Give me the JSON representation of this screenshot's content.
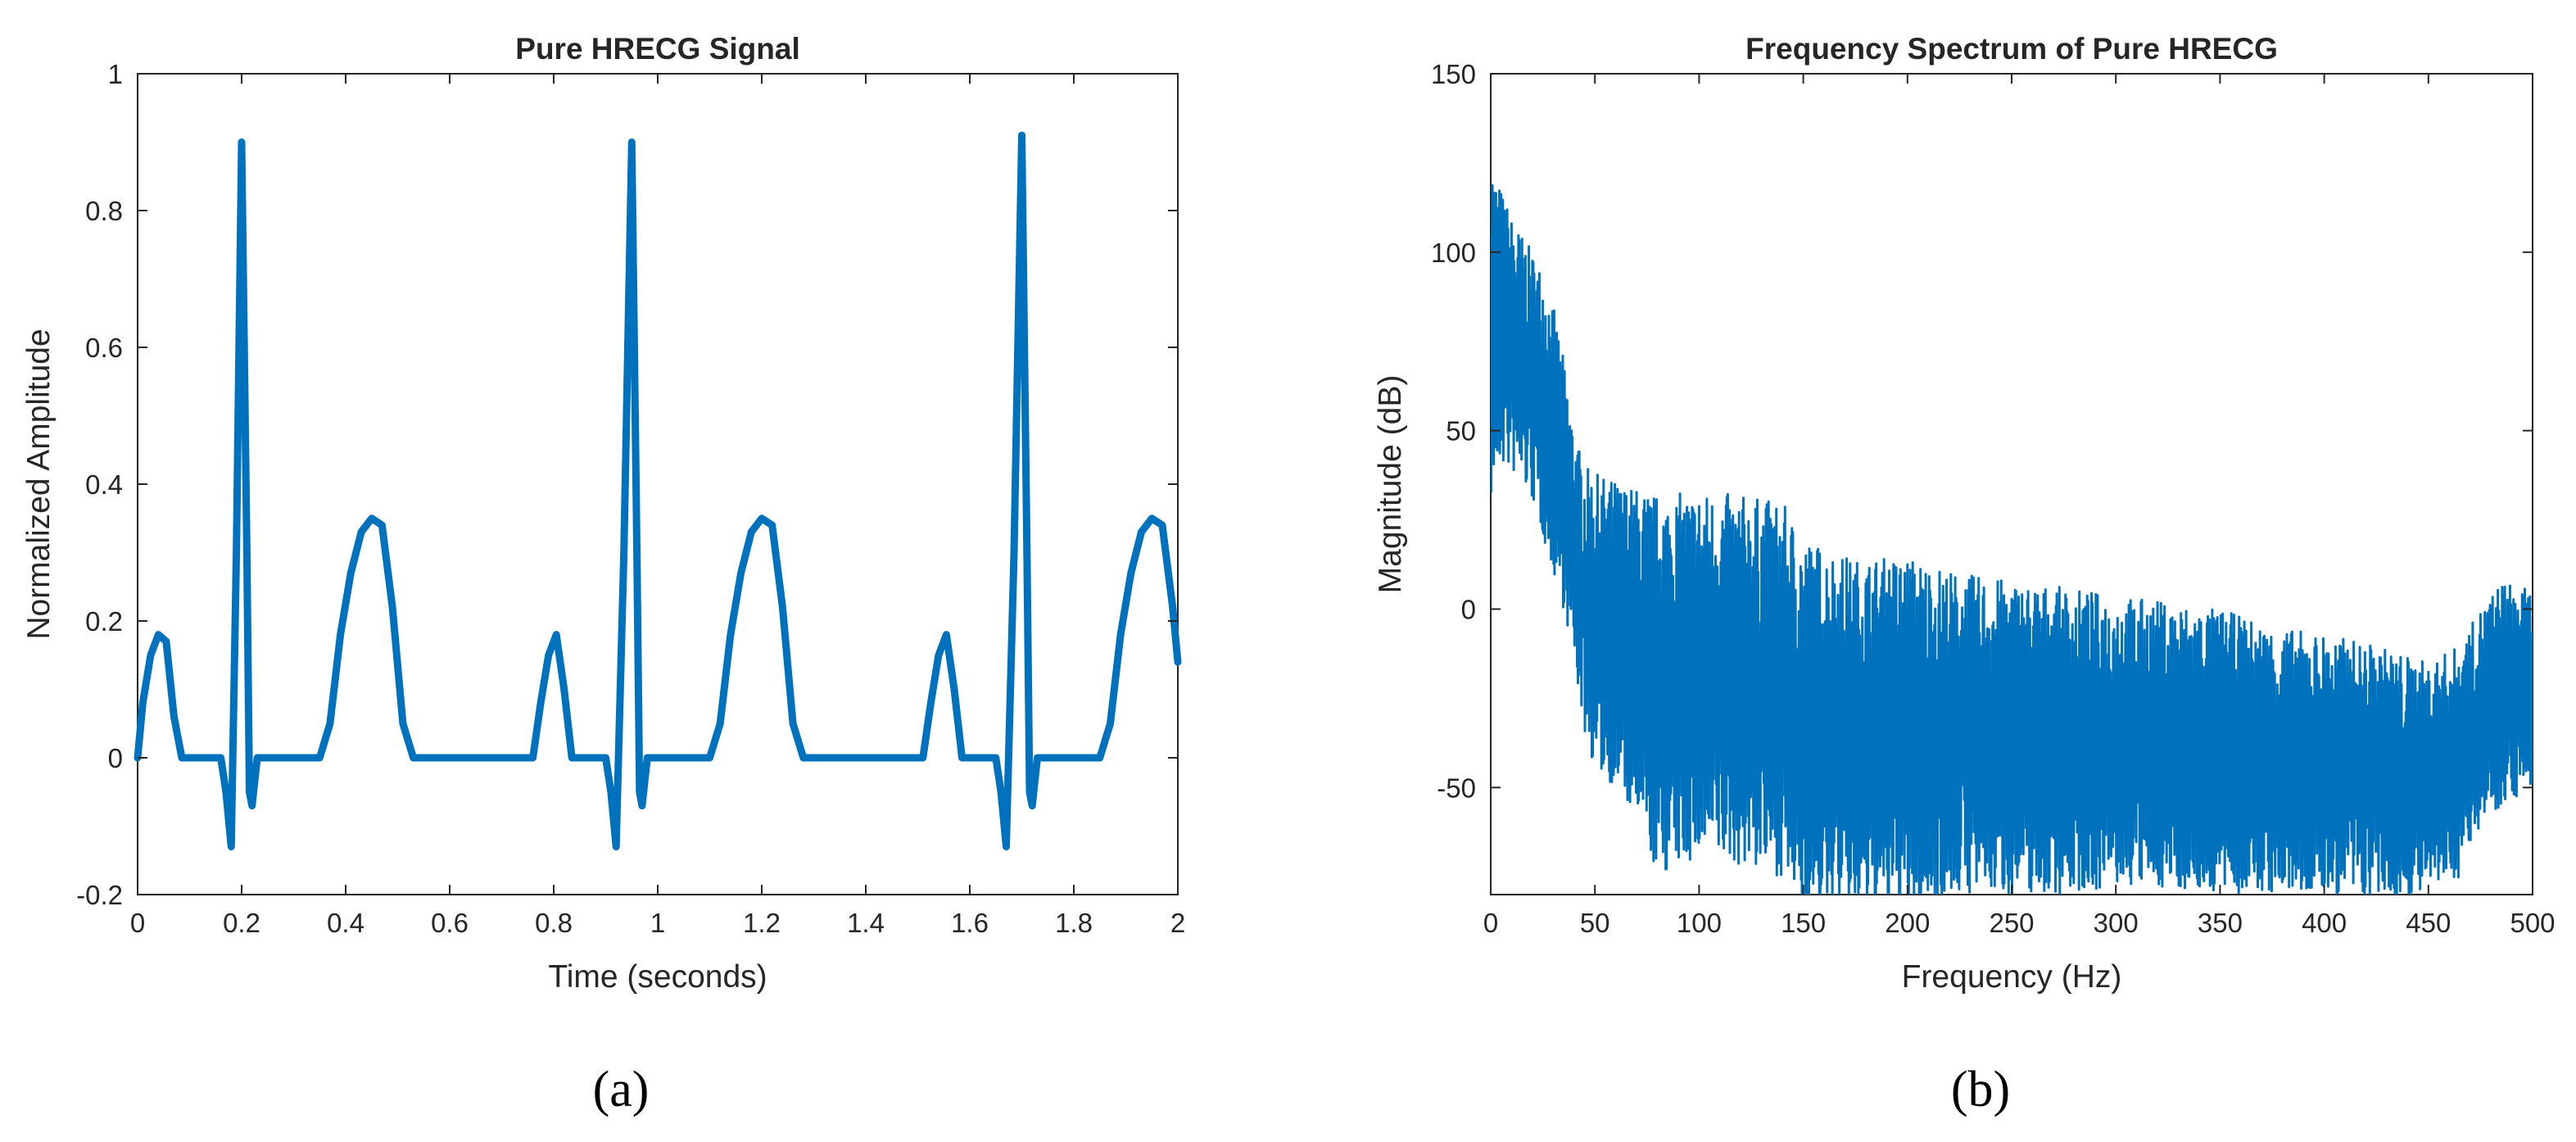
{
  "colors": {
    "line": "#0072BD",
    "axis": "#262626",
    "background": "#ffffff"
  },
  "chart_data": [
    {
      "type": "line",
      "title": "Pure HRECG Signal",
      "xlabel": "Time (seconds)",
      "ylabel": "Normalized Amplitude",
      "xlim": [
        0,
        2
      ],
      "ylim": [
        -0.2,
        1
      ],
      "xticks": [
        "0",
        "0.2",
        "0.4",
        "0.6",
        "0.8",
        "1",
        "1.2",
        "1.4",
        "1.6",
        "1.8",
        "2"
      ],
      "yticks": [
        "-0.2",
        "0",
        "0.2",
        "0.4",
        "0.6",
        "0.8",
        "1"
      ],
      "grid": false,
      "caption": "(a)",
      "series": [
        {
          "x": [
            0,
            0.01,
            0.025,
            0.04,
            0.055,
            0.07,
            0.085,
            0.1,
            0.13,
            0.16,
            0.17,
            0.18,
            0.19,
            0.2,
            0.21,
            0.215,
            0.22,
            0.23,
            0.25,
            0.3,
            0.35,
            0.37,
            0.39,
            0.41,
            0.43,
            0.45,
            0.47,
            0.49,
            0.51,
            0.53,
            0.6,
            0.7,
            0.76,
            0.775,
            0.79,
            0.805,
            0.82,
            0.835,
            0.85,
            0.9,
            0.91,
            0.92,
            0.935,
            0.95,
            0.96,
            0.965,
            0.97,
            0.98,
            1.0,
            1.05,
            1.1,
            1.12,
            1.14,
            1.16,
            1.18,
            1.2,
            1.22,
            1.24,
            1.26,
            1.28,
            1.35,
            1.45,
            1.51,
            1.525,
            1.54,
            1.555,
            1.57,
            1.585,
            1.6,
            1.65,
            1.66,
            1.67,
            1.685,
            1.7,
            1.71,
            1.715,
            1.72,
            1.73,
            1.75,
            1.8,
            1.85,
            1.87,
            1.89,
            1.91,
            1.93,
            1.95,
            1.97,
            1.99,
            2.0
          ],
          "y": [
            0,
            0.08,
            0.15,
            0.18,
            0.17,
            0.06,
            0.0,
            0.0,
            0.0,
            0.0,
            -0.05,
            -0.13,
            0.3,
            0.9,
            0.3,
            -0.05,
            -0.07,
            0.0,
            0.0,
            0.0,
            0.0,
            0.05,
            0.18,
            0.27,
            0.33,
            0.35,
            0.34,
            0.22,
            0.05,
            0.0,
            0.0,
            0.0,
            0.0,
            0.08,
            0.15,
            0.18,
            0.1,
            0.0,
            0.0,
            0.0,
            -0.05,
            -0.13,
            0.3,
            0.9,
            0.3,
            -0.05,
            -0.07,
            0.0,
            0.0,
            0.0,
            0.0,
            0.05,
            0.18,
            0.27,
            0.33,
            0.35,
            0.34,
            0.22,
            0.05,
            0.0,
            0.0,
            0.0,
            0.0,
            0.08,
            0.15,
            0.18,
            0.1,
            0.0,
            0.0,
            0.0,
            -0.05,
            -0.13,
            0.3,
            0.91,
            0.3,
            -0.05,
            -0.07,
            0.0,
            0.0,
            0.0,
            0.0,
            0.05,
            0.18,
            0.27,
            0.33,
            0.35,
            0.34,
            0.22,
            0.14
          ]
        }
      ]
    },
    {
      "type": "line",
      "title": "Frequency Spectrum of Pure HRECG",
      "xlabel": "Frequency (Hz)",
      "ylabel": "Magnitude (dB)",
      "xlim": [
        0,
        500
      ],
      "ylim": [
        -80,
        150
      ],
      "xticks": [
        "0",
        "50",
        "100",
        "150",
        "200",
        "250",
        "300",
        "350",
        "400",
        "450",
        "500"
      ],
      "yticks": [
        "-50",
        "0",
        "50",
        "100",
        "150"
      ],
      "grid": false,
      "caption": "(b)",
      "series": [
        {
          "x": [
            0,
            2,
            5,
            10,
            15,
            20,
            25,
            30,
            35,
            40,
            45,
            50,
            60,
            70,
            80,
            100,
            120,
            140,
            150,
            175,
            200,
            225,
            250,
            275,
            300,
            325,
            350,
            375,
            400,
            425,
            450,
            465,
            475,
            485,
            500
          ],
          "y_upper": [
            130,
            122,
            118,
            110,
            105,
            100,
            95,
            85,
            70,
            50,
            40,
            38,
            36,
            34,
            32,
            33,
            32,
            30,
            20,
            14,
            15,
            10,
            8,
            6,
            4,
            2,
            0,
            -5,
            -7,
            -10,
            -15,
            -10,
            0,
            8,
            5
          ],
          "y_lower": [
            30,
            35,
            40,
            38,
            35,
            30,
            20,
            10,
            0,
            -15,
            -35,
            -45,
            -50,
            -60,
            -75,
            -70,
            -72,
            -75,
            -85,
            -85,
            -85,
            -80,
            -80,
            -80,
            -78,
            -78,
            -80,
            -80,
            -80,
            -82,
            -80,
            -75,
            -60,
            -55,
            -50
          ]
        }
      ]
    }
  ]
}
